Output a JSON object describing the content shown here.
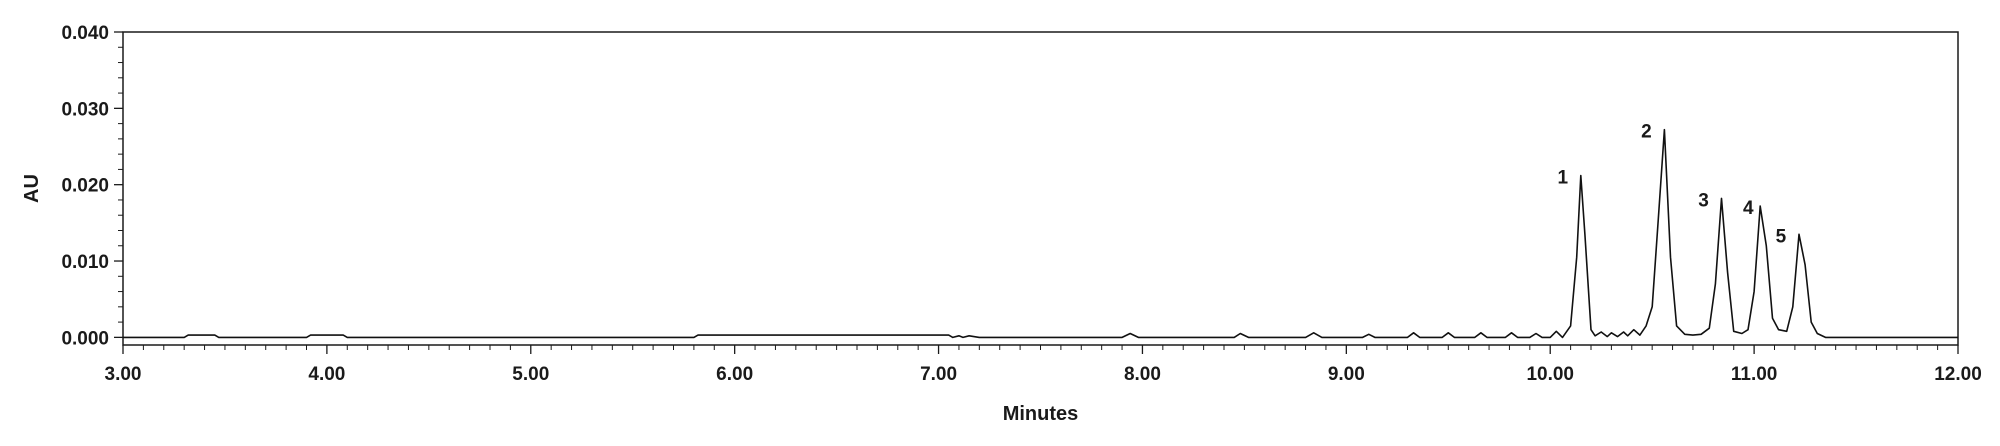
{
  "chart_data": {
    "type": "line",
    "title": "",
    "xlabel": "Minutes",
    "ylabel": "AU",
    "xlim": [
      3.0,
      12.0
    ],
    "ylim": [
      -0.001,
      0.04
    ],
    "x_ticks": [
      3.0,
      4.0,
      5.0,
      6.0,
      7.0,
      8.0,
      9.0,
      10.0,
      11.0,
      12.0
    ],
    "x_tick_labels": [
      "3.00",
      "4.00",
      "5.00",
      "6.00",
      "7.00",
      "8.00",
      "9.00",
      "10.00",
      "11.00",
      "12.00"
    ],
    "y_ticks": [
      0.0,
      0.01,
      0.02,
      0.03,
      0.04
    ],
    "y_tick_labels": [
      "0.000",
      "0.010",
      "0.020",
      "0.030",
      "0.040"
    ],
    "grid": false,
    "line_color": "#111111",
    "series": [
      {
        "x": [
          3.0,
          3.3,
          3.32,
          3.45,
          3.47,
          3.9,
          3.92,
          4.08,
          4.1,
          5.8,
          5.82,
          7.05,
          7.07,
          7.1,
          7.12,
          7.15,
          7.2,
          7.9,
          7.94,
          7.98,
          8.45,
          8.48,
          8.52,
          8.8,
          8.84,
          8.88,
          9.08,
          9.11,
          9.14,
          9.3,
          9.33,
          9.36,
          9.47,
          9.5,
          9.53,
          9.63,
          9.66,
          9.69,
          9.78,
          9.81,
          9.84,
          9.9,
          9.93,
          9.96,
          10.0,
          10.03,
          10.06,
          10.1,
          10.13,
          10.15,
          10.17,
          10.2,
          10.22,
          10.25,
          10.28,
          10.3,
          10.33,
          10.36,
          10.38,
          10.41,
          10.44,
          10.47,
          10.5,
          10.53,
          10.56,
          10.59,
          10.62,
          10.66,
          10.7,
          10.74,
          10.78,
          10.81,
          10.84,
          10.87,
          10.9,
          10.94,
          10.97,
          11.0,
          11.03,
          11.06,
          11.09,
          11.12,
          11.16,
          11.19,
          11.22,
          11.25,
          11.28,
          11.31,
          11.35,
          11.4,
          12.0
        ],
        "y": [
          0.0,
          0.0,
          0.0003,
          0.0003,
          0.0,
          0.0,
          0.0003,
          0.0003,
          0.0,
          0.0,
          0.0003,
          0.0003,
          0.0,
          0.0002,
          0.0,
          0.0002,
          0.0,
          0.0,
          0.0005,
          0.0,
          0.0,
          0.0005,
          0.0,
          0.0,
          0.0006,
          0.0,
          0.0,
          0.0004,
          0.0,
          0.0,
          0.0006,
          0.0,
          0.0,
          0.0006,
          0.0,
          0.0,
          0.0006,
          0.0,
          0.0,
          0.0006,
          0.0,
          0.0,
          0.0005,
          0.0,
          0.0,
          0.0008,
          0.0,
          0.0015,
          0.0105,
          0.0212,
          0.0135,
          0.001,
          0.0002,
          0.0007,
          0.0001,
          0.0006,
          0.0001,
          0.0007,
          0.0002,
          0.001,
          0.0003,
          0.0015,
          0.004,
          0.0155,
          0.0272,
          0.0105,
          0.0015,
          0.0004,
          0.0003,
          0.0004,
          0.0012,
          0.007,
          0.0182,
          0.0085,
          0.0008,
          0.0005,
          0.001,
          0.006,
          0.0172,
          0.012,
          0.0025,
          0.001,
          0.0008,
          0.004,
          0.0135,
          0.0095,
          0.002,
          0.0005,
          0.0,
          0.0,
          0.0
        ]
      }
    ],
    "annotations": [
      {
        "text": "1",
        "x": 10.15,
        "y": 0.0212
      },
      {
        "text": "2",
        "x": 10.56,
        "y": 0.0272
      },
      {
        "text": "3",
        "x": 10.84,
        "y": 0.0182
      },
      {
        "text": "4",
        "x": 11.06,
        "y": 0.0172
      },
      {
        "text": "5",
        "x": 11.22,
        "y": 0.0135
      }
    ]
  }
}
